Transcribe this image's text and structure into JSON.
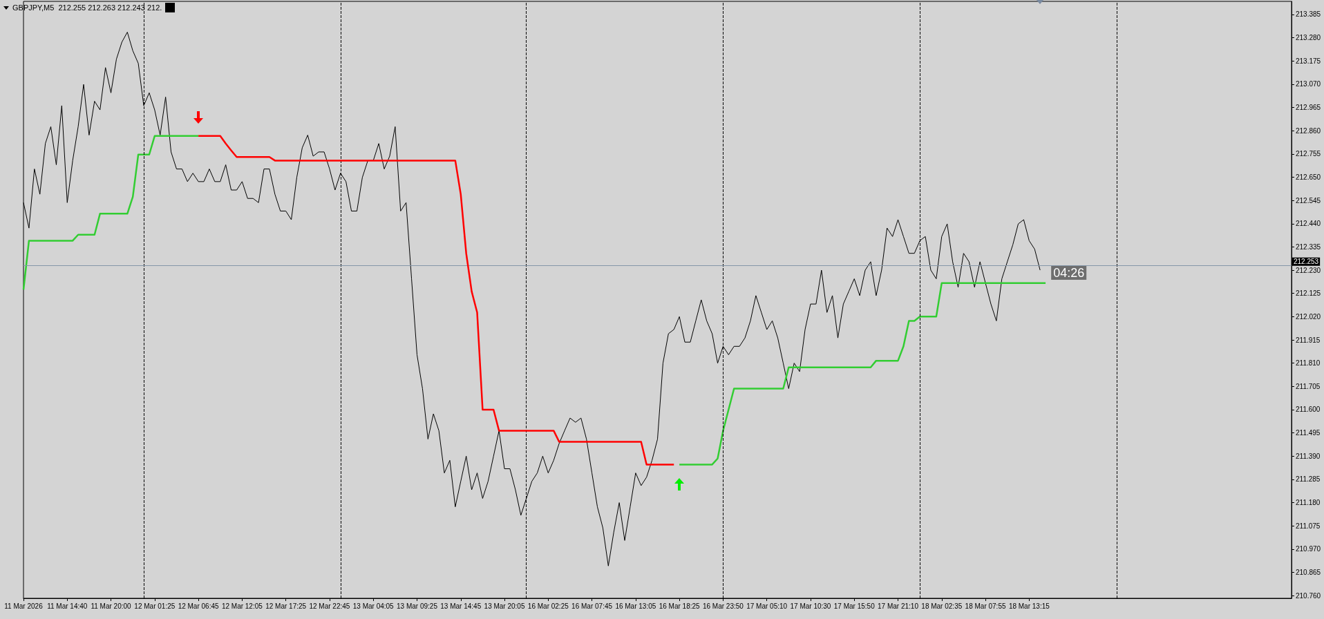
{
  "chart_data": {
    "type": "line",
    "title": "GBPJPY,M5  212.255 212.263 212.243 212.",
    "annotations": [
      "04:26"
    ],
    "marker": "none",
    "categories": [
      "11 Mar 2026",
      null,
      null,
      null,
      null,
      null,
      null,
      null,
      "11 Mar 14:40",
      null,
      null,
      null,
      null,
      null,
      null,
      null,
      "11 Mar 20:00",
      null,
      null,
      null,
      null,
      null,
      null,
      null,
      "12 Mar 01:25",
      null,
      null,
      null,
      null,
      null,
      null,
      null,
      "12 Mar 06:45",
      null,
      null,
      null,
      null,
      null,
      null,
      null,
      "12 Mar 12:05",
      null,
      null,
      null,
      null,
      null,
      null,
      null,
      "12 Mar 17:25",
      null,
      null,
      null,
      null,
      null,
      null,
      null,
      "12 Mar 22:45",
      null,
      null,
      null,
      null,
      null,
      null,
      null,
      "13 Mar 04:05",
      null,
      null,
      null,
      null,
      null,
      null,
      null,
      "13 Mar 09:25",
      null,
      null,
      null,
      null,
      null,
      null,
      null,
      "13 Mar 14:45",
      null,
      null,
      null,
      null,
      null,
      null,
      null,
      "13 Mar 20:05",
      null,
      null,
      null,
      null,
      null,
      null,
      null,
      "16 Mar 02:25",
      null,
      null,
      null,
      null,
      null,
      null,
      null,
      "16 Mar 07:45",
      null,
      null,
      null,
      null,
      null,
      null,
      null,
      "16 Mar 13:05",
      null,
      null,
      null,
      null,
      null,
      null,
      null,
      "16 Mar 18:25",
      null,
      null,
      null,
      null,
      null,
      null,
      null,
      "16 Mar 23:50",
      null,
      null,
      null,
      null,
      null,
      null,
      null,
      "17 Mar 05:10",
      null,
      null,
      null,
      null,
      null,
      null,
      null,
      "17 Mar 10:30",
      null,
      null,
      null,
      null,
      null,
      null,
      null,
      "17 Mar 15:50",
      null,
      null,
      null,
      null,
      null,
      null,
      null,
      "17 Mar 21:10",
      null,
      null,
      null,
      null,
      null,
      null,
      null,
      "18 Mar 02:35",
      null,
      null,
      null,
      null,
      null,
      null,
      null,
      "18 Mar 07:55",
      null,
      null,
      null,
      null,
      null,
      null,
      null,
      "18 Mar 13:15",
      null,
      null,
      null,
      null,
      null,
      null,
      null,
      null,
      null,
      null,
      null,
      null,
      null,
      null,
      null,
      null,
      null,
      null,
      null,
      null,
      null,
      null,
      null,
      null,
      null,
      null,
      null,
      null,
      null,
      null,
      null,
      null,
      null,
      null,
      null,
      null,
      null,
      null,
      null,
      null,
      null,
      null,
      null,
      null,
      null,
      null,
      null,
      null
    ],
    "ylim": [
      210.748,
      213.444
    ],
    "yticks": [
      {
        "value": 210.76,
        "label": "210.760"
      },
      210.865,
      {
        "value": 210.97,
        "label": "210.970"
      },
      211.075,
      {
        "value": 211.18,
        "label": "211.180"
      },
      211.285,
      {
        "value": 211.39,
        "label": "211.390"
      },
      211.495,
      {
        "value": 211.6,
        "label": "211.600"
      },
      211.705,
      {
        "value": 211.81,
        "label": "211.810"
      },
      211.915,
      {
        "value": 212.02,
        "label": "212.020"
      },
      212.125,
      {
        "value": 212.23,
        "label": "212.230"
      },
      212.335,
      {
        "value": 212.44,
        "label": "212.440"
      },
      212.545,
      {
        "value": 212.65,
        "label": "212.650"
      },
      212.755,
      {
        "value": 212.86,
        "label": "212.860"
      },
      212.965,
      {
        "value": 213.07,
        "label": "213.070"
      },
      213.175,
      {
        "value": 213.28,
        "label": "213.280"
      },
      213.385
    ],
    "ref_lines": [
      {
        "axis": "y",
        "value": 212.253,
        "label": "212.253",
        "color": "#8496a8",
        "line_style": "solid"
      }
    ],
    "series": [
      {
        "color": "#000000",
        "values": [
          212.535,
          212.42,
          212.687,
          212.573,
          212.802,
          212.878,
          212.706,
          212.973,
          212.535,
          212.725,
          212.878,
          213.069,
          212.84,
          212.993,
          212.954,
          213.145,
          213.031,
          213.183,
          213.26,
          213.305,
          213.221,
          213.164,
          212.973,
          213.031,
          212.954,
          212.84,
          213.012,
          212.764,
          212.687,
          212.687,
          212.63,
          212.668,
          212.63,
          212.63,
          212.687,
          212.63,
          212.63,
          212.706,
          212.592,
          212.592,
          212.63,
          212.554,
          212.554,
          212.535,
          212.687,
          212.687,
          212.573,
          212.497,
          212.497,
          212.458,
          212.649,
          212.783,
          212.84,
          212.745,
          212.764,
          212.764,
          212.687,
          212.592,
          212.668,
          212.63,
          212.497,
          212.497,
          212.649,
          212.725,
          212.725,
          212.802,
          212.687,
          212.745,
          212.878,
          212.497,
          212.535,
          212.191,
          211.848,
          211.695,
          211.467,
          211.581,
          211.505,
          211.314,
          211.371,
          211.161,
          211.276,
          211.39,
          211.238,
          211.314,
          211.199,
          211.276,
          211.39,
          211.505,
          211.333,
          211.333,
          211.238,
          211.123,
          211.199,
          211.276,
          211.314,
          211.39,
          211.314,
          211.371,
          211.447,
          211.505,
          211.562,
          211.543,
          211.562,
          211.467,
          211.314,
          211.161,
          211.066,
          210.894,
          211.047,
          211.18,
          211.009,
          211.161,
          211.314,
          211.257,
          211.295,
          211.371,
          211.467,
          211.81,
          211.943,
          211.962,
          212.02,
          211.905,
          211.905,
          212.001,
          212.096,
          212.001,
          211.943,
          211.81,
          211.886,
          211.848,
          211.886,
          211.886,
          211.924,
          212.001,
          212.115,
          212.039,
          211.962,
          212.001,
          211.924,
          211.81,
          211.695,
          211.81,
          211.772,
          211.962,
          212.077,
          212.077,
          212.23,
          212.039,
          212.115,
          211.924,
          212.077,
          212.134,
          212.191,
          212.115,
          212.23,
          212.268,
          212.115,
          212.23,
          212.42,
          212.382,
          212.458,
          212.382,
          212.306,
          212.306,
          212.363,
          212.382,
          212.23,
          212.191,
          212.382,
          212.439,
          212.268,
          212.153,
          212.306,
          212.268,
          212.153,
          212.268,
          212.172,
          212.077,
          212.001,
          212.191,
          212.268,
          212.344,
          212.439,
          212.458,
          212.363,
          212.325,
          212.23,
          null,
          null,
          null,
          null,
          null,
          null,
          null,
          null,
          null,
          null,
          null,
          null,
          null,
          null,
          null,
          null,
          null,
          null,
          null,
          null,
          null,
          null,
          null,
          null,
          null,
          null,
          null,
          null,
          null,
          null,
          null,
          null,
          null,
          null,
          null,
          null,
          null,
          null,
          null,
          null,
          null,
          null,
          null,
          null,
          null,
          null
        ]
      },
      {
        "type": "step",
        "color": "#32cd32",
        "values": [
          212.142,
          212.363,
          212.363,
          212.363,
          212.363,
          212.363,
          212.363,
          212.363,
          212.363,
          212.363,
          212.39,
          212.39,
          212.39,
          212.39,
          212.485,
          212.485,
          212.485,
          212.485,
          212.485,
          212.485,
          212.561,
          212.752,
          212.752,
          212.752,
          212.836,
          212.836,
          212.836,
          212.836,
          212.836,
          212.836,
          212.836,
          212.836,
          212.836,
          null,
          null,
          null,
          null,
          null,
          null,
          null,
          null,
          null,
          null,
          null,
          null,
          null,
          null,
          null,
          null,
          null,
          null,
          null,
          null,
          null,
          null,
          null,
          null,
          null,
          null,
          null,
          null,
          null,
          null,
          null,
          null,
          null,
          null,
          null,
          null,
          null,
          null,
          null,
          null,
          null,
          null,
          null,
          null,
          null,
          null,
          null,
          null,
          null,
          null,
          null,
          null,
          null,
          null,
          null,
          null,
          null,
          null,
          null,
          null,
          null,
          null,
          null,
          null,
          null,
          null,
          null,
          null,
          null,
          null,
          null,
          null,
          null,
          null,
          null,
          null,
          null,
          null,
          null,
          null,
          null,
          null,
          null,
          null,
          null,
          null,
          null,
          211.352,
          211.352,
          211.352,
          211.352,
          211.352,
          211.352,
          211.352,
          211.379,
          211.505,
          211.6,
          211.695,
          211.695,
          211.695,
          211.695,
          211.695,
          211.695,
          211.695,
          211.695,
          211.695,
          211.695,
          211.791,
          211.791,
          211.791,
          211.791,
          211.791,
          211.791,
          211.791,
          211.791,
          211.791,
          211.791,
          211.791,
          211.791,
          211.791,
          211.791,
          211.791,
          211.791,
          211.821,
          211.821,
          211.821,
          211.821,
          211.821,
          211.886,
          212.001,
          212.001,
          212.02,
          212.02,
          212.02,
          212.02,
          212.172,
          212.172,
          212.172,
          212.172,
          212.172,
          212.172,
          212.172,
          212.172,
          212.172,
          212.172,
          212.172,
          212.172,
          212.172,
          212.172,
          212.172,
          212.172,
          212.172,
          212.172,
          212.172,
          212.172,
          null,
          null,
          null,
          null,
          null,
          null,
          null,
          null,
          null,
          null,
          null,
          null,
          null,
          null,
          null,
          null,
          null,
          null,
          null,
          null,
          null,
          null,
          null,
          null,
          null,
          null,
          null,
          null,
          null,
          null,
          null,
          null,
          null,
          null,
          null,
          null,
          null,
          null,
          null,
          null,
          null,
          null,
          null,
          null,
          null
        ]
      },
      {
        "type": "step",
        "color": "#ff0000",
        "values": [
          null,
          null,
          null,
          null,
          null,
          null,
          null,
          null,
          null,
          null,
          null,
          null,
          null,
          null,
          null,
          null,
          null,
          null,
          null,
          null,
          null,
          null,
          null,
          null,
          null,
          null,
          null,
          null,
          null,
          null,
          null,
          null,
          212.836,
          212.836,
          212.836,
          212.836,
          212.836,
          212.802,
          212.771,
          212.741,
          212.741,
          212.741,
          212.741,
          212.741,
          212.741,
          212.741,
          212.725,
          212.725,
          212.725,
          212.725,
          212.725,
          212.725,
          212.725,
          212.725,
          212.725,
          212.725,
          212.725,
          212.725,
          212.725,
          212.725,
          212.725,
          212.725,
          212.725,
          212.725,
          212.725,
          212.725,
          212.725,
          212.725,
          212.725,
          212.725,
          212.725,
          212.725,
          212.725,
          212.725,
          212.725,
          212.725,
          212.725,
          212.725,
          212.725,
          212.725,
          212.573,
          212.306,
          212.134,
          212.039,
          211.6,
          211.6,
          211.6,
          211.505,
          211.505,
          211.505,
          211.505,
          211.505,
          211.505,
          211.505,
          211.505,
          211.505,
          211.505,
          211.505,
          211.455,
          211.455,
          211.455,
          211.455,
          211.455,
          211.455,
          211.455,
          211.455,
          211.455,
          211.455,
          211.455,
          211.455,
          211.455,
          211.455,
          211.455,
          211.455,
          211.352,
          211.352,
          211.352,
          211.352,
          211.352,
          211.352,
          null,
          null,
          null,
          null,
          null,
          null,
          null,
          null,
          null,
          null,
          null,
          null,
          null,
          null,
          null,
          null,
          null,
          null,
          null,
          null,
          null,
          null,
          null,
          null,
          null,
          null,
          null,
          null,
          null,
          null,
          null,
          null,
          null,
          null,
          null,
          null,
          null,
          null,
          null,
          null,
          null,
          null,
          null,
          null,
          null,
          null,
          null,
          null,
          null,
          null,
          null,
          null,
          null,
          null,
          null,
          null,
          null,
          null,
          null,
          null,
          null,
          null,
          null,
          null,
          null,
          null,
          null,
          null,
          null,
          null,
          null,
          null,
          null,
          null,
          null,
          null,
          null,
          null,
          null,
          null,
          null,
          null,
          null,
          null,
          null,
          null,
          null,
          null,
          null,
          null,
          null,
          null,
          null,
          null,
          null,
          null,
          null,
          null,
          null,
          null,
          null,
          null,
          null,
          null,
          null,
          null,
          null,
          null,
          null,
          null,
          null,
          null,
          null
        ]
      }
    ]
  }
}
